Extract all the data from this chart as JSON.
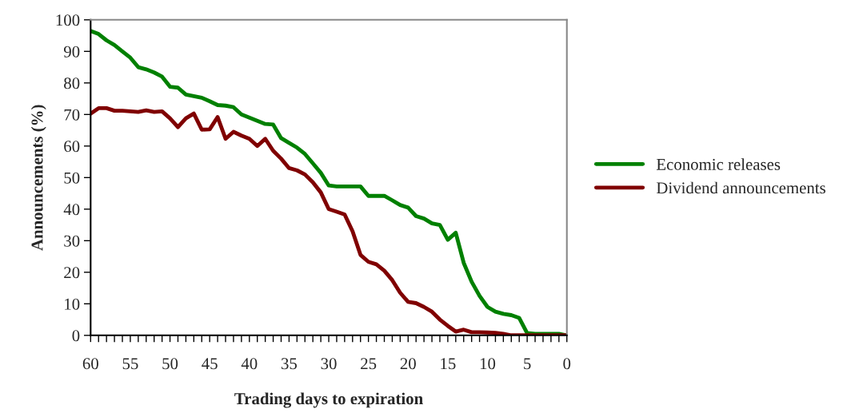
{
  "chart_data": {
    "type": "line",
    "xlabel": "Trading days to expiration",
    "ylabel": "Announcements (%)",
    "x": [
      60,
      59,
      58,
      57,
      56,
      55,
      54,
      53,
      52,
      51,
      50,
      49,
      48,
      47,
      46,
      45,
      44,
      43,
      42,
      41,
      40,
      39,
      38,
      37,
      36,
      35,
      34,
      33,
      32,
      31,
      30,
      29,
      28,
      27,
      26,
      25,
      24,
      23,
      22,
      21,
      20,
      19,
      18,
      17,
      16,
      15,
      14,
      13,
      12,
      11,
      10,
      9,
      8,
      7,
      6,
      5,
      4,
      3,
      2,
      1,
      0
    ],
    "series": [
      {
        "name": "Economic releases",
        "color": "#008000",
        "values": [
          96.5,
          95.5,
          93.5,
          92,
          90,
          88,
          85,
          84.3,
          83.3,
          82,
          78.8,
          78.5,
          76.3,
          75.8,
          75.3,
          74.2,
          73,
          72.8,
          72.3,
          70,
          69,
          68,
          67,
          66.8,
          62.5,
          61,
          59.5,
          57.5,
          54.5,
          51.5,
          47.5,
          47.2,
          47.2,
          47.2,
          47.2,
          44.2,
          44.2,
          44.2,
          42.8,
          41.3,
          40.5,
          37.8,
          37,
          35.5,
          35,
          30.3,
          32.5,
          23,
          17,
          12.5,
          9,
          7.5,
          6.8,
          6.4,
          5.5,
          0.7,
          0.5,
          0.5,
          0.5,
          0.5,
          0
        ]
      },
      {
        "name": "Dividend announcements",
        "color": "#800000",
        "values": [
          70.3,
          72,
          72,
          71.2,
          71.2,
          71,
          70.8,
          71.3,
          70.8,
          71,
          68.8,
          66,
          68.8,
          70.3,
          65.2,
          65.3,
          69.2,
          62.3,
          64.5,
          63.3,
          62.3,
          60,
          62.3,
          58.5,
          56,
          53,
          52.3,
          51,
          48.5,
          45.3,
          40,
          39.2,
          38.3,
          33,
          25.5,
          23.3,
          22.5,
          20.5,
          17.5,
          13.5,
          10.6,
          10.2,
          9,
          7.5,
          5,
          3,
          1.2,
          1.8,
          1,
          1,
          0.9,
          0.8,
          0.5,
          0,
          0,
          0,
          0,
          0,
          0,
          0,
          0
        ]
      }
    ],
    "xlim": [
      60,
      0
    ],
    "xticks": [
      60,
      {
        "value": 59,
        "label": null
      },
      {
        "value": 58,
        "label": null
      },
      {
        "value": 57,
        "label": null
      },
      {
        "value": 56,
        "label": null
      },
      55,
      {
        "value": 54,
        "label": null
      },
      {
        "value": 53,
        "label": null
      },
      {
        "value": 52,
        "label": null
      },
      {
        "value": 51,
        "label": null
      },
      50,
      {
        "value": 49,
        "label": null
      },
      {
        "value": 48,
        "label": null
      },
      {
        "value": 47,
        "label": null
      },
      {
        "value": 46,
        "label": null
      },
      45,
      {
        "value": 44,
        "label": null
      },
      {
        "value": 43,
        "label": null
      },
      {
        "value": 42,
        "label": null
      },
      {
        "value": 41,
        "label": null
      },
      40,
      {
        "value": 39,
        "label": null
      },
      {
        "value": 38,
        "label": null
      },
      {
        "value": 37,
        "label": null
      },
      {
        "value": 36,
        "label": null
      },
      35,
      {
        "value": 34,
        "label": null
      },
      {
        "value": 33,
        "label": null
      },
      {
        "value": 32,
        "label": null
      },
      {
        "value": 31,
        "label": null
      },
      30,
      {
        "value": 29,
        "label": null
      },
      {
        "value": 28,
        "label": null
      },
      {
        "value": 27,
        "label": null
      },
      {
        "value": 26,
        "label": null
      },
      25,
      {
        "value": 24,
        "label": null
      },
      {
        "value": 23,
        "label": null
      },
      {
        "value": 22,
        "label": null
      },
      {
        "value": 21,
        "label": null
      },
      20,
      {
        "value": 19,
        "label": null
      },
      {
        "value": 18,
        "label": null
      },
      {
        "value": 17,
        "label": null
      },
      {
        "value": 16,
        "label": null
      },
      15,
      {
        "value": 14,
        "label": null
      },
      {
        "value": 13,
        "label": null
      },
      {
        "value": 12,
        "label": null
      },
      {
        "value": 11,
        "label": null
      },
      10,
      {
        "value": 9,
        "label": null
      },
      {
        "value": 8,
        "label": null
      },
      {
        "value": 7,
        "label": null
      },
      {
        "value": 6,
        "label": null
      },
      5,
      {
        "value": 4,
        "label": null
      },
      {
        "value": 3,
        "label": null
      },
      {
        "value": 2,
        "label": null
      },
      {
        "value": 1,
        "label": null
      },
      0
    ],
    "ylim": [
      0,
      100
    ],
    "yticks": [
      0,
      10,
      20,
      30,
      40,
      50,
      60,
      70,
      80,
      90,
      100
    ],
    "grid": false,
    "legend": "right",
    "marker": "none",
    "line_style": "solid"
  }
}
